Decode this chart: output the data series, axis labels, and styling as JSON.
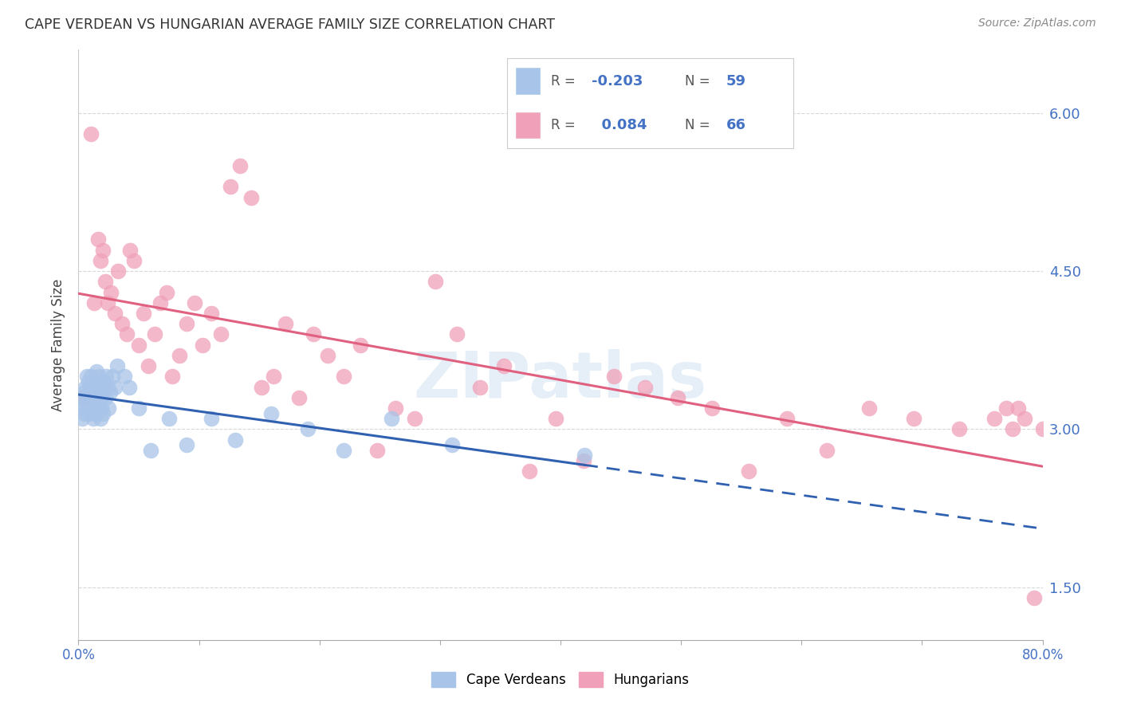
{
  "title": "CAPE VERDEAN VS HUNGARIAN AVERAGE FAMILY SIZE CORRELATION CHART",
  "source": "Source: ZipAtlas.com",
  "ylabel": "Average Family Size",
  "yticks": [
    1.5,
    3.0,
    4.5,
    6.0
  ],
  "xlim": [
    0.0,
    0.8
  ],
  "ylim": [
    1.0,
    6.6
  ],
  "cv_R": -0.203,
  "cv_N": 59,
  "hu_R": 0.084,
  "hu_N": 66,
  "cv_color": "#a8c4e8",
  "hu_color": "#f0a0b8",
  "cv_line_color": "#3060b0",
  "hu_line_color": "#e06080",
  "watermark": "ZIPatlas",
  "background_color": "#ffffff",
  "grid_color": "#d8d8d8",
  "cv_x": [
    0.002,
    0.003,
    0.004,
    0.005,
    0.005,
    0.006,
    0.006,
    0.007,
    0.007,
    0.008,
    0.008,
    0.009,
    0.009,
    0.01,
    0.01,
    0.01,
    0.011,
    0.011,
    0.012,
    0.012,
    0.013,
    0.013,
    0.014,
    0.014,
    0.015,
    0.015,
    0.016,
    0.016,
    0.017,
    0.017,
    0.018,
    0.018,
    0.019,
    0.019,
    0.02,
    0.02,
    0.021,
    0.022,
    0.023,
    0.024,
    0.025,
    0.026,
    0.028,
    0.03,
    0.032,
    0.038,
    0.042,
    0.05,
    0.06,
    0.075,
    0.09,
    0.11,
    0.13,
    0.16,
    0.19,
    0.22,
    0.26,
    0.31,
    0.42
  ],
  "cv_y": [
    3.2,
    3.1,
    3.3,
    3.15,
    3.35,
    3.4,
    3.25,
    3.5,
    3.2,
    3.3,
    3.45,
    3.15,
    3.35,
    3.2,
    3.4,
    3.5,
    3.3,
    3.25,
    3.1,
    3.4,
    3.2,
    3.35,
    3.15,
    3.45,
    3.3,
    3.55,
    3.4,
    3.2,
    3.5,
    3.25,
    3.3,
    3.1,
    3.4,
    3.2,
    3.35,
    3.15,
    3.45,
    3.3,
    3.5,
    3.4,
    3.2,
    3.35,
    3.5,
    3.4,
    3.6,
    3.5,
    3.4,
    3.2,
    2.8,
    3.1,
    2.85,
    3.1,
    2.9,
    3.15,
    3.0,
    2.8,
    3.1,
    2.85,
    2.75
  ],
  "hu_x": [
    0.005,
    0.01,
    0.013,
    0.016,
    0.018,
    0.02,
    0.022,
    0.024,
    0.027,
    0.03,
    0.033,
    0.036,
    0.04,
    0.043,
    0.046,
    0.05,
    0.054,
    0.058,
    0.063,
    0.068,
    0.073,
    0.078,
    0.084,
    0.09,
    0.096,
    0.103,
    0.11,
    0.118,
    0.126,
    0.134,
    0.143,
    0.152,
    0.162,
    0.172,
    0.183,
    0.195,
    0.207,
    0.22,
    0.234,
    0.248,
    0.263,
    0.279,
    0.296,
    0.314,
    0.333,
    0.353,
    0.374,
    0.396,
    0.419,
    0.444,
    0.47,
    0.497,
    0.526,
    0.556,
    0.588,
    0.621,
    0.656,
    0.693,
    0.731,
    0.77,
    0.76,
    0.775,
    0.78,
    0.785,
    0.793,
    0.8
  ],
  "hu_y": [
    3.3,
    5.8,
    4.2,
    4.8,
    4.6,
    4.7,
    4.4,
    4.2,
    4.3,
    4.1,
    4.5,
    4.0,
    3.9,
    4.7,
    4.6,
    3.8,
    4.1,
    3.6,
    3.9,
    4.2,
    4.3,
    3.5,
    3.7,
    4.0,
    4.2,
    3.8,
    4.1,
    3.9,
    5.3,
    5.5,
    5.2,
    3.4,
    3.5,
    4.0,
    3.3,
    3.9,
    3.7,
    3.5,
    3.8,
    2.8,
    3.2,
    3.1,
    4.4,
    3.9,
    3.4,
    3.6,
    2.6,
    3.1,
    2.7,
    3.5,
    3.4,
    3.3,
    3.2,
    2.6,
    3.1,
    2.8,
    3.2,
    3.1,
    3.0,
    3.2,
    3.1,
    3.0,
    3.2,
    3.1,
    1.4,
    3.0
  ]
}
